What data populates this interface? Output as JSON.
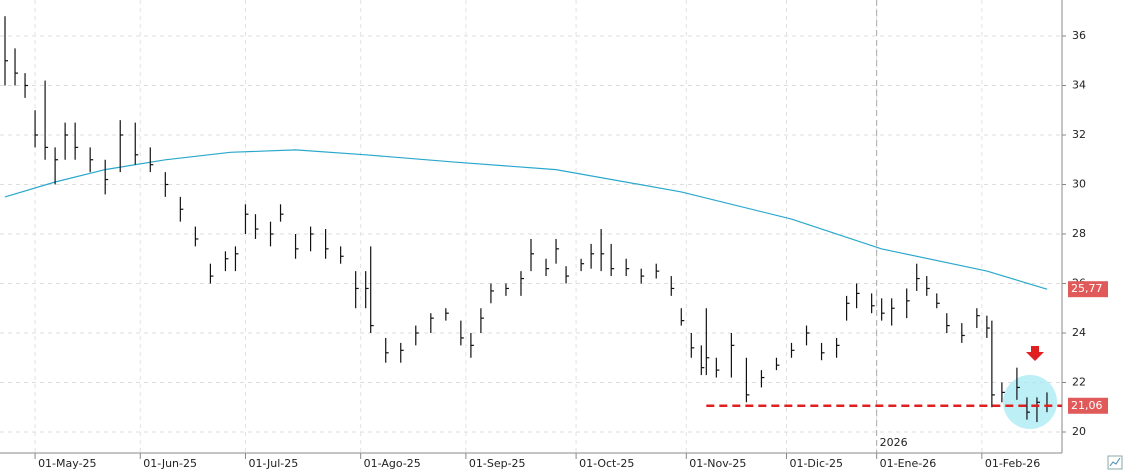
{
  "chart_data": {
    "type": "ohlc",
    "xlim": [
      -1,
      211
    ],
    "ylim": [
      20,
      36.8
    ],
    "yticks": [
      20,
      22,
      24,
      26,
      28,
      30,
      32,
      34,
      36
    ],
    "xticks": [
      {
        "value": 6,
        "label": "01-May-25"
      },
      {
        "value": 27,
        "label": "01-Jun-25"
      },
      {
        "value": 48,
        "label": "01-Jul-25"
      },
      {
        "value": 71,
        "label": "01-Ago-25"
      },
      {
        "value": 92,
        "label": "01-Sep-25"
      },
      {
        "value": 114,
        "label": "01-Oct-25"
      },
      {
        "value": 136,
        "label": "01-Nov-25"
      },
      {
        "value": 156,
        "label": "01-Dic-25"
      },
      {
        "value": 174,
        "label": "01-Ene-26"
      },
      {
        "value": 195,
        "label": "01-Feb-26"
      }
    ],
    "year_marker": {
      "value": 174,
      "label": "2026"
    },
    "grid": true,
    "bar_color": "#111111",
    "x": [
      0,
      2,
      4,
      6,
      8,
      10,
      12,
      14,
      17,
      20,
      23,
      26,
      29,
      32,
      35,
      38,
      41,
      44,
      46,
      48,
      50,
      53,
      55,
      58,
      61,
      64,
      67,
      70,
      72,
      73,
      76,
      79,
      82,
      85,
      88,
      91,
      93,
      95,
      97,
      100,
      103,
      105,
      108,
      110,
      112,
      115,
      117,
      119,
      121,
      124,
      127,
      130,
      133,
      135,
      137,
      139,
      140,
      142,
      145,
      148,
      151,
      154,
      157,
      160,
      163,
      166,
      168,
      170,
      173,
      175,
      177,
      180,
      182,
      184,
      186,
      188,
      191,
      194,
      196,
      197,
      199,
      202,
      204,
      206,
      208
    ],
    "high": [
      36.8,
      35.5,
      34.5,
      33,
      34.2,
      31.5,
      32.5,
      32.5,
      31.5,
      31,
      32.6,
      32.5,
      31.5,
      30.5,
      29.5,
      28.3,
      26.8,
      27.3,
      27.5,
      29.2,
      28.8,
      28.5,
      29.2,
      28,
      28.3,
      28.2,
      27.5,
      26.5,
      26.5,
      27.5,
      23.8,
      23.6,
      24.3,
      24.8,
      25,
      24.5,
      24,
      25,
      26,
      26,
      26.5,
      27.8,
      27,
      27.8,
      26.7,
      27,
      27.6,
      28.2,
      27.6,
      27,
      26.6,
      26.8,
      26.3,
      25,
      24,
      23.5,
      25,
      23,
      24,
      23,
      22.5,
      23,
      23.6,
      24.3,
      23.6,
      23.8,
      25.5,
      26,
      25.6,
      25.4,
      25.4,
      25.8,
      26.8,
      26.3,
      25.6,
      24.8,
      24.4,
      25,
      24.7,
      24.5,
      22,
      22.6,
      21.4,
      21.4,
      21.6
    ],
    "low": [
      34,
      34,
      33.5,
      31.5,
      31,
      30,
      31,
      31,
      30.5,
      29.6,
      30.5,
      30.8,
      30.5,
      29.5,
      28.5,
      27.5,
      26,
      26.5,
      26.5,
      28,
      27.8,
      27.5,
      28.5,
      27,
      27.3,
      27,
      26.8,
      25,
      25,
      24,
      22.8,
      22.8,
      23.5,
      24,
      24.5,
      23.5,
      23,
      24,
      25.2,
      25.5,
      25.5,
      26.5,
      26.3,
      26.8,
      26,
      26.5,
      26.6,
      26.5,
      26.3,
      26.3,
      26,
      26.2,
      25.5,
      24.3,
      23,
      22.3,
      22.3,
      22.2,
      22.2,
      21.2,
      21.8,
      22.5,
      23,
      23.5,
      22.9,
      23,
      24.5,
      25,
      24.8,
      24.5,
      24.3,
      24.6,
      25.7,
      25.5,
      25,
      24,
      23.6,
      24.2,
      23.8,
      21,
      21.2,
      21.3,
      20.5,
      20.4,
      20.8
    ],
    "close": [
      35,
      34.5,
      34,
      32,
      31.5,
      31,
      32,
      31.5,
      31,
      30.2,
      32,
      31.2,
      30.8,
      30,
      29,
      27.8,
      26.3,
      27,
      27.2,
      28.8,
      28.2,
      28,
      28.8,
      27.4,
      28,
      27.4,
      27.1,
      25.8,
      25.8,
      24.3,
      23.2,
      23.3,
      24,
      24.6,
      24.8,
      23.8,
      23.5,
      24.6,
      25.7,
      25.8,
      26.2,
      27.2,
      26.6,
      27.4,
      26.3,
      26.8,
      27.2,
      27.2,
      26.6,
      26.6,
      26.3,
      26.5,
      25.8,
      24.5,
      23.4,
      22.6,
      23,
      22.5,
      23.5,
      21.5,
      22.2,
      22.7,
      23.3,
      24,
      23.2,
      23.5,
      25.2,
      25.6,
      25.1,
      24.8,
      25,
      25.3,
      26.2,
      25.8,
      25.2,
      24.3,
      23.9,
      24.7,
      24.2,
      21.5,
      21.6,
      21.8,
      20.8,
      21.2,
      21.06
    ],
    "moving_average": {
      "color": "#2aa8cc",
      "x": [
        0,
        10,
        20,
        32,
        45,
        58,
        72,
        90,
        110,
        135,
        157,
        175,
        196,
        208
      ],
      "values": [
        29.5,
        30.1,
        30.6,
        31,
        31.3,
        31.4,
        31.2,
        30.9,
        30.6,
        29.7,
        28.6,
        27.4,
        26.5,
        25.77
      ],
      "value_label": "25,77"
    },
    "support": {
      "value": 21.06,
      "label": "21,06",
      "x_start": 140,
      "color": "#e02020"
    }
  }
}
